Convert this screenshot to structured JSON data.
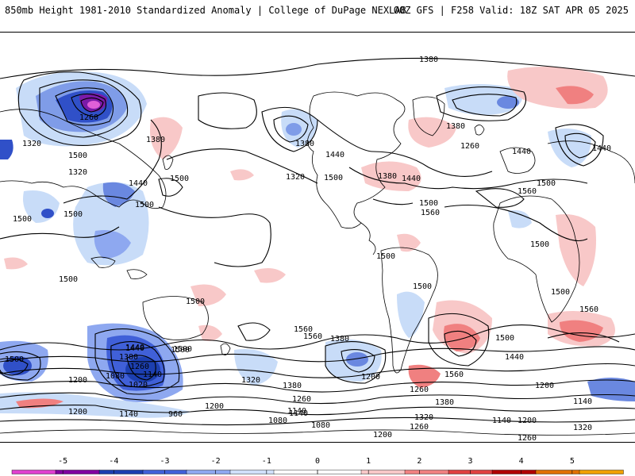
{
  "header": {
    "title": "850mb Height 1981-2010 Standardized Anomaly | College of DuPage NEXLAB",
    "run_info": "00Z GFS | F258 Valid: 18Z SAT APR 05 2025"
  },
  "map": {
    "projection": "global cylindrical",
    "contour_labels": [
      {
        "text": "1380"
      },
      {
        "text": "1260"
      },
      {
        "text": "1380"
      },
      {
        "text": "1500"
      },
      {
        "text": "1320"
      },
      {
        "text": "1440"
      },
      {
        "text": "1500"
      },
      {
        "text": "1500"
      },
      {
        "text": "1500"
      },
      {
        "text": "1500"
      },
      {
        "text": "1500"
      },
      {
        "text": "1500"
      },
      {
        "text": "1380"
      },
      {
        "text": "1440"
      },
      {
        "text": "1320"
      },
      {
        "text": "1500"
      },
      {
        "text": "1380"
      },
      {
        "text": "1440"
      },
      {
        "text": "1500"
      },
      {
        "text": "1560"
      },
      {
        "text": "1380"
      },
      {
        "text": "1260"
      },
      {
        "text": "1440"
      },
      {
        "text": "1440"
      },
      {
        "text": "1500"
      },
      {
        "text": "1560"
      },
      {
        "text": "1500"
      },
      {
        "text": "1500"
      },
      {
        "text": "1500"
      },
      {
        "text": "1560"
      },
      {
        "text": "1500"
      },
      {
        "text": "1560"
      },
      {
        "text": "1560"
      },
      {
        "text": "1500"
      },
      {
        "text": "1440"
      },
      {
        "text": "1500"
      },
      {
        "text": "1440"
      },
      {
        "text": "1560"
      },
      {
        "text": "1200"
      },
      {
        "text": "1380"
      },
      {
        "text": "1320"
      },
      {
        "text": "1260"
      },
      {
        "text": "1200"
      },
      {
        "text": "1140"
      },
      {
        "text": "1500"
      },
      {
        "text": "1440"
      },
      {
        "text": "1380"
      },
      {
        "text": "1260"
      },
      {
        "text": "1080"
      },
      {
        "text": "1140"
      },
      {
        "text": "1020"
      },
      {
        "text": "960"
      },
      {
        "text": "1140"
      },
      {
        "text": "1200"
      },
      {
        "text": "1500"
      },
      {
        "text": "1320"
      },
      {
        "text": "1380"
      },
      {
        "text": "1260"
      },
      {
        "text": "1140"
      },
      {
        "text": "1080"
      },
      {
        "text": "1200"
      },
      {
        "text": "1140"
      },
      {
        "text": "1200"
      },
      {
        "text": "1320"
      },
      {
        "text": "1380"
      },
      {
        "text": "1200"
      },
      {
        "text": "1140"
      },
      {
        "text": "1080"
      },
      {
        "text": "1200"
      },
      {
        "text": "1320"
      },
      {
        "text": "1200"
      },
      {
        "text": "1140"
      },
      {
        "text": "1080"
      },
      {
        "text": "1260"
      },
      {
        "text": "1260"
      },
      {
        "text": "1260"
      },
      {
        "text": "1320"
      }
    ]
  },
  "colorbar": {
    "tick_labels": [
      "-5",
      "-4",
      "-3",
      "-2",
      "-1",
      "0",
      "1",
      "2",
      "3",
      "4",
      "5"
    ],
    "colors": [
      "#e040d0",
      "#8000a0",
      "#1c3fb0",
      "#4060d8",
      "#8ea8f0",
      "#d0e0fa",
      "#ffffff",
      "#ffffff",
      "#f8c8c8",
      "#f08080",
      "#e04040",
      "#b00000",
      "#e07000",
      "#f0a000"
    ]
  }
}
